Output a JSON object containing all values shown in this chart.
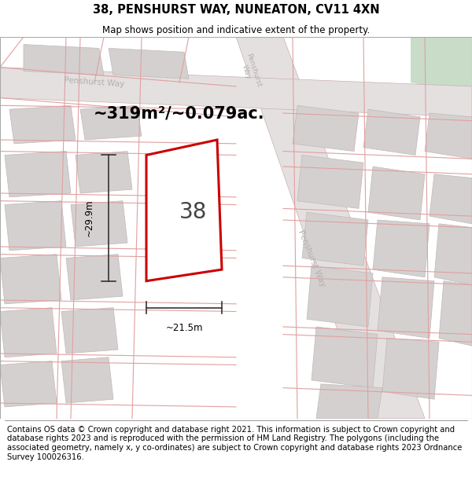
{
  "title": "38, PENSHURST WAY, NUNEATON, CV11 4XN",
  "subtitle": "Map shows position and indicative extent of the property.",
  "area_text": "~319m²/~0.079ac.",
  "label_number": "38",
  "dim_width": "~21.5m",
  "dim_height": "~29.9m",
  "footer": "Contains OS data © Crown copyright and database right 2021. This information is subject to Crown copyright and database rights 2023 and is reproduced with the permission of HM Land Registry. The polygons (including the associated geometry, namely x, y co-ordinates) are subject to Crown copyright and database rights 2023 Ordnance Survey 100026316.",
  "bg_color": "#ffffff",
  "map_bg": "#eeecec",
  "highlight_color": "#cc0000",
  "green_color": "#c8dcc8",
  "title_fontsize": 10.5,
  "subtitle_fontsize": 8.5,
  "area_fontsize": 15,
  "label_fontsize": 20,
  "footer_fontsize": 7.2,
  "street_label_color": "#b0b0b0",
  "dim_color": "#333333",
  "road_fill": "#e5e0e0",
  "road_edge": "#c8b0b0",
  "block_fill": "#d5d0d0",
  "block_edge": "#c0b8b8",
  "street_line_color": "#e0a0a0"
}
